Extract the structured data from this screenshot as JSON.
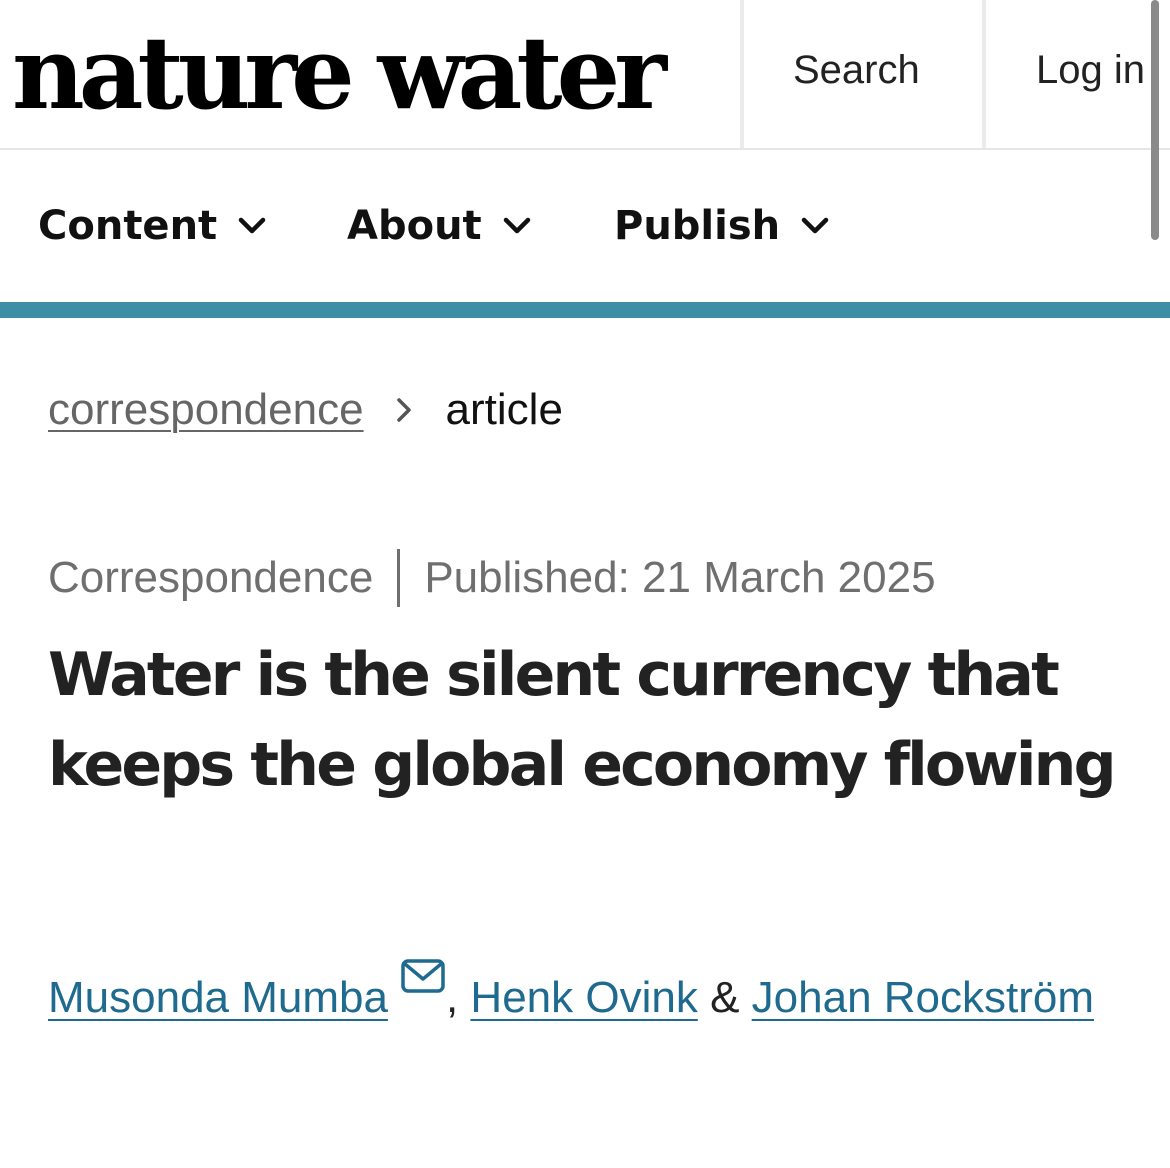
{
  "header": {
    "logo": "nature water",
    "search_label": "Search",
    "login_label": "Log in"
  },
  "nav": {
    "items": [
      {
        "label": "Content"
      },
      {
        "label": "About"
      },
      {
        "label": "Publish"
      }
    ],
    "accent_color": "#3e8fa6"
  },
  "breadcrumb": {
    "parent": "correspondence",
    "current": "article"
  },
  "article": {
    "type": "Correspondence",
    "published": "Published: 21 March 2025",
    "title": "Water is the silent currency that keeps the global economy flowing",
    "authors": [
      {
        "name": "Musonda Mumba",
        "has_email_icon": true
      },
      {
        "name": "Henk Ovink"
      },
      {
        "name": "Johan Rockström"
      }
    ],
    "separators": [
      ",",
      "&"
    ],
    "link_color": "#1f6a8f"
  },
  "icons": [
    "chevron-down-icon",
    "chevron-right-icon",
    "envelope-icon"
  ]
}
